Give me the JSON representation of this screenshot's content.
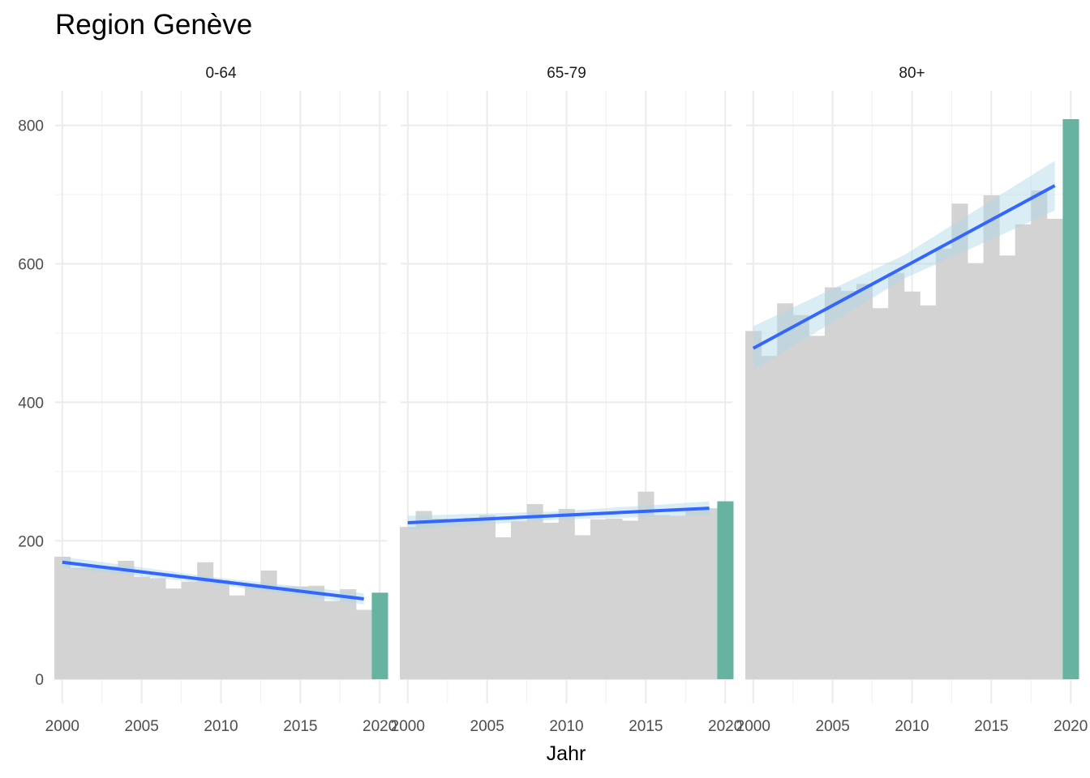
{
  "chart_data": {
    "type": "bar",
    "title": "Region Genève",
    "xlabel": "Jahr",
    "ylabel": "",
    "ylim": [
      -35,
      850
    ],
    "yticks": [
      0,
      200,
      400,
      600,
      800
    ],
    "xticks": [
      2000,
      2005,
      2010,
      2015,
      2020
    ],
    "xlim": [
      1999.55,
      2020.45
    ],
    "grid": true,
    "highlight_year": 2020,
    "colors": {
      "bar": "#d3d3d3",
      "highlight": "#66b3a1",
      "trend": "#3366ff",
      "band": "#add8e6"
    },
    "panels": [
      {
        "label": "0-64",
        "years": [
          2000,
          2001,
          2002,
          2003,
          2004,
          2005,
          2006,
          2007,
          2008,
          2009,
          2010,
          2011,
          2012,
          2013,
          2014,
          2015,
          2016,
          2017,
          2018,
          2019,
          2020
        ],
        "values": [
          177,
          161,
          162,
          163,
          171,
          148,
          146,
          131,
          141,
          169,
          143,
          121,
          136,
          157,
          134,
          134,
          135,
          113,
          130,
          100,
          125
        ],
        "trend": {
          "start": [
            2000,
            169
          ],
          "end": [
            2019,
            116
          ],
          "se": [
            8,
            5,
            8
          ]
        }
      },
      {
        "label": "65-79",
        "years": [
          2000,
          2001,
          2002,
          2003,
          2004,
          2005,
          2006,
          2007,
          2008,
          2009,
          2010,
          2011,
          2012,
          2013,
          2014,
          2015,
          2016,
          2017,
          2018,
          2019,
          2020
        ],
        "values": [
          220,
          243,
          232,
          230,
          233,
          237,
          205,
          228,
          253,
          226,
          246,
          208,
          231,
          232,
          229,
          271,
          237,
          236,
          245,
          247,
          257
        ],
        "trend": {
          "start": [
            2000,
            226
          ],
          "end": [
            2019,
            247
          ],
          "se": [
            10,
            6,
            10
          ]
        }
      },
      {
        "label": "80+",
        "years": [
          2000,
          2001,
          2002,
          2003,
          2004,
          2005,
          2006,
          2007,
          2008,
          2009,
          2010,
          2011,
          2012,
          2013,
          2014,
          2015,
          2016,
          2017,
          2018,
          2019,
          2020
        ],
        "values": [
          503,
          467,
          543,
          526,
          496,
          566,
          561,
          571,
          536,
          587,
          560,
          540,
          622,
          687,
          601,
          699,
          612,
          657,
          706,
          665,
          809
        ],
        "trend": {
          "start": [
            2000,
            478
          ],
          "end": [
            2019,
            713
          ],
          "se": [
            32,
            17,
            36
          ]
        }
      }
    ]
  }
}
